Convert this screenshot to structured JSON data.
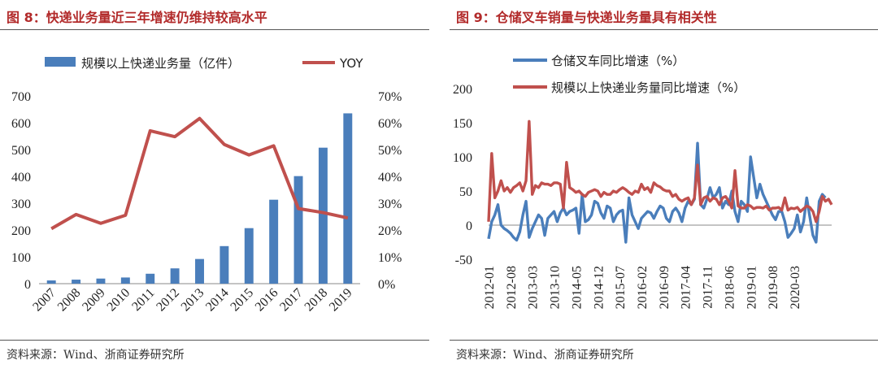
{
  "colors": {
    "bar": "#4a7ebb",
    "line": "#c0504d",
    "title": "#b22a2a"
  },
  "left": {
    "title": "图 8：快递业务量近三年增速仍维持较高水平",
    "source": "资料来源：Wind、浙商证券研究所"
  },
  "right": {
    "title": "图 9：仓储叉车销量与快递业务量具有相关性",
    "source": "资料来源：Wind、浙商证券研究所"
  },
  "chart_data": [
    {
      "type": "bar",
      "title": "图 8：快递业务量近三年增速仍维持较高水平",
      "categories": [
        "2007",
        "2008",
        "2009",
        "2010",
        "2011",
        "2012",
        "2013",
        "2014",
        "2015",
        "2016",
        "2017",
        "2018",
        "2019"
      ],
      "series": [
        {
          "name": "规模以上快递业务量（亿件）",
          "kind": "bar",
          "axis": "left",
          "values": [
            12,
            15,
            19,
            23,
            37,
            57,
            92,
            140,
            207,
            313,
            401,
            507,
            635
          ]
        },
        {
          "name": "YOY",
          "kind": "line",
          "axis": "right",
          "values": [
            20.5,
            25.8,
            22.5,
            25.5,
            57,
            54.8,
            61.6,
            51.9,
            48,
            51.4,
            28,
            26.5,
            24.5
          ]
        }
      ],
      "ylim": [
        0,
        700
      ],
      "yticks": [
        "0",
        "100",
        "200",
        "300",
        "400",
        "500",
        "600",
        "700"
      ],
      "y2lim": [
        0,
        70
      ],
      "y2ticks": [
        "0%",
        "10%",
        "20%",
        "30%",
        "40%",
        "50%",
        "60%",
        "70%"
      ],
      "legend": "top"
    },
    {
      "type": "line",
      "title": "图 9：仓储叉车销量与快递业务量具有相关性",
      "x_start": "2012-01",
      "x_labels": [
        "2012-01",
        "2012-08",
        "2013-03",
        "2013-10",
        "2014-05",
        "2014-12",
        "2015-07",
        "2016-02",
        "2016-09",
        "2017-04",
        "2017-11",
        "2018-06",
        "2019-01",
        "2019-08",
        "2020-03"
      ],
      "ylim": [
        -50,
        200
      ],
      "yticks": [
        "-50",
        "0",
        "50",
        "100",
        "150",
        "200"
      ],
      "series": [
        {
          "name": "仓储叉车同比增速（%）",
          "color": "#4a7ebb",
          "values": [
            -20,
            5,
            15,
            30,
            0,
            -5,
            -8,
            -12,
            -18,
            -22,
            -10,
            15,
            35,
            -18,
            -5,
            5,
            15,
            10,
            -15,
            10,
            15,
            20,
            5,
            18,
            25,
            15,
            20,
            22,
            25,
            -12,
            45,
            5,
            8,
            15,
            35,
            32,
            18,
            10,
            28,
            25,
            5,
            15,
            20,
            22,
            -25,
            40,
            15,
            5,
            -5,
            10,
            15,
            20,
            18,
            10,
            20,
            28,
            25,
            10,
            5,
            20,
            25,
            18,
            5,
            25,
            35,
            30,
            38,
            120,
            30,
            25,
            38,
            55,
            40,
            45,
            55,
            25,
            35,
            30,
            50,
            20,
            5,
            35,
            30,
            20,
            100,
            70,
            40,
            60,
            45,
            35,
            25,
            15,
            8,
            20,
            20,
            5,
            -18,
            -12,
            -5,
            15,
            -10,
            5,
            40,
            12,
            -15,
            -25,
            35,
            45,
            40
          ]
        },
        {
          "name": "规模以上快递业务量同比增速（%）",
          "color": "#c0504d",
          "values": [
            5,
            105,
            40,
            50,
            65,
            50,
            55,
            48,
            55,
            58,
            62,
            50,
            65,
            152,
            45,
            58,
            55,
            62,
            60,
            60,
            58,
            62,
            62,
            60,
            25,
            92,
            55,
            52,
            48,
            50,
            45,
            42,
            48,
            50,
            52,
            50,
            42,
            48,
            45,
            45,
            50,
            48,
            52,
            55,
            52,
            48,
            45,
            50,
            48,
            60,
            52,
            55,
            48,
            62,
            58,
            56,
            52,
            50,
            50,
            42,
            45,
            38,
            35,
            38,
            40,
            30,
            40,
            88,
            30,
            40,
            42,
            35,
            40,
            38,
            30,
            40,
            42,
            35,
            25,
            80,
            28,
            25,
            25,
            30,
            28,
            24,
            26,
            26,
            25,
            28,
            22,
            25,
            25,
            26,
            22,
            40,
            22,
            25,
            24,
            26,
            20,
            24,
            28,
            26,
            20,
            5,
            20,
            42,
            35,
            38,
            30
          ]
        }
      ],
      "legend": "top-left"
    }
  ]
}
